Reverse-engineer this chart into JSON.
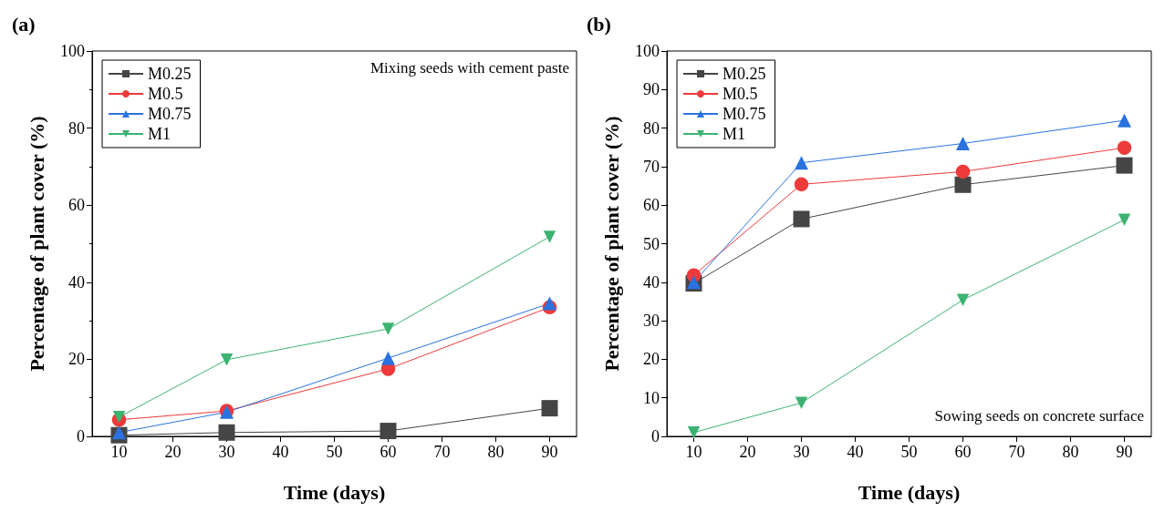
{
  "chart_data": [
    {
      "type": "line",
      "title": "(a)",
      "xlabel": "Time (days)",
      "ylabel": "Percentage of plant cover (%)",
      "x": [
        10,
        30,
        60,
        90
      ],
      "xlim": [
        5,
        95
      ],
      "xticks": [
        10,
        20,
        30,
        40,
        50,
        60,
        70,
        80,
        90
      ],
      "ylim": [
        0,
        100
      ],
      "yticks": [
        0,
        20,
        40,
        60,
        80,
        100
      ],
      "legend": "top left",
      "grid": false,
      "annotations": [
        "Mixing seeds with cement paste"
      ],
      "series": [
        {
          "name": "M0.25",
          "color": "#454545",
          "marker": "square",
          "values": [
            0.3,
            1.0,
            1.4,
            7.3
          ]
        },
        {
          "name": "M0.5",
          "color": "#ee3a3a",
          "marker": "circle",
          "values": [
            4.3,
            6.6,
            17.5,
            33.5
          ]
        },
        {
          "name": "M0.75",
          "color": "#2a72e0",
          "marker": "triangle",
          "values": [
            1.0,
            6.3,
            20.3,
            34.5
          ]
        },
        {
          "name": "M1",
          "color": "#3cb371",
          "marker": "triangle-down",
          "values": [
            5.0,
            19.9,
            27.9,
            51.8
          ]
        }
      ]
    },
    {
      "type": "line",
      "title": "(b)",
      "xlabel": "Time (days)",
      "ylabel": "Percentage of plant cover (%)",
      "x": [
        10,
        30,
        60,
        90
      ],
      "xlim": [
        5,
        95
      ],
      "xticks": [
        10,
        20,
        30,
        40,
        50,
        60,
        70,
        80,
        90
      ],
      "ylim": [
        0,
        100
      ],
      "yticks": [
        0,
        10,
        20,
        30,
        40,
        50,
        60,
        70,
        80,
        90,
        100
      ],
      "legend": "top left",
      "grid": false,
      "annotations": [
        "Sowing seeds on concrete surface"
      ],
      "series": [
        {
          "name": "M0.25",
          "color": "#454545",
          "marker": "square",
          "values": [
            39.7,
            56.4,
            65.3,
            70.3
          ]
        },
        {
          "name": "M0.5",
          "color": "#ee3a3a",
          "marker": "circle",
          "values": [
            41.8,
            65.4,
            68.7,
            74.9
          ]
        },
        {
          "name": "M0.75",
          "color": "#2a72e0",
          "marker": "triangle",
          "values": [
            40,
            71,
            76,
            82
          ]
        },
        {
          "name": "M1",
          "color": "#3cb371",
          "marker": "triangle-down",
          "values": [
            1,
            8.7,
            35.4,
            56.2
          ]
        }
      ]
    }
  ]
}
